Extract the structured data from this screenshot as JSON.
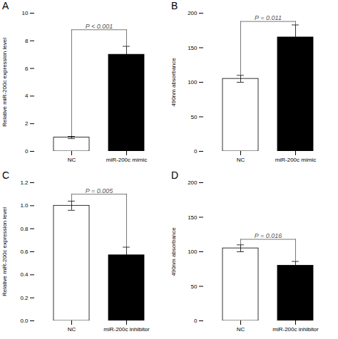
{
  "chart_data": [
    {
      "type": "bar",
      "title": "A",
      "categories": [
        "NC",
        "miR-200c mimic"
      ],
      "values": [
        1.0,
        7.0
      ],
      "errors": [
        0.08,
        0.6
      ],
      "colors": [
        "white",
        "black"
      ],
      "ylabel": "Relative miR-200c expression level",
      "ylim": [
        0,
        10
      ],
      "yticks": [
        0,
        2,
        4,
        6,
        8,
        10
      ],
      "annotation": {
        "text": "P < 0.001",
        "color": "#555555"
      },
      "bracket": {
        "y": 8.8,
        "left": 1.08,
        "right": 7.6,
        "color": "#555555"
      }
    },
    {
      "type": "bar",
      "title": "B",
      "categories": [
        "NC",
        "miR-200c mimic"
      ],
      "values": [
        105,
        165
      ],
      "errors": [
        5,
        18
      ],
      "colors": [
        "white",
        "black"
      ],
      "ylabel": "490nm absorbance",
      "ylim": [
        0,
        200
      ],
      "yticks": [
        0,
        50,
        100,
        150,
        200
      ],
      "annotation": {
        "text": "P = 0.011",
        "color": "#555555"
      },
      "bracket": {
        "y": 188,
        "left": 110,
        "right": 183,
        "color": "#555555"
      }
    },
    {
      "type": "bar",
      "title": "C",
      "categories": [
        "NC",
        "miR-200c inhibitor"
      ],
      "values": [
        1.0,
        0.57
      ],
      "errors": [
        0.04,
        0.07
      ],
      "colors": [
        "white",
        "black"
      ],
      "ylabel": "Relative miR-200c expression level",
      "ylim": [
        0,
        1.2
      ],
      "yticks": [
        {
          "value": 0,
          "label": "0.0"
        },
        0.2,
        0.4,
        0.6,
        0.8,
        {
          "value": 1,
          "label": "1.0"
        },
        1.2
      ],
      "annotation": {
        "text": "P = 0.005",
        "color": "#555555"
      },
      "bracket": {
        "y": 1.1,
        "left": 1.04,
        "right": 0.64,
        "color": "#555555"
      }
    },
    {
      "type": "bar",
      "title": "D",
      "categories": [
        "NC",
        "miR-200c inhibitor"
      ],
      "values": [
        105,
        80
      ],
      "errors": [
        5,
        6
      ],
      "colors": [
        "white",
        "black"
      ],
      "ylabel": "490nm absorbance",
      "ylim": [
        0,
        200
      ],
      "yticks": [
        0,
        50,
        100,
        150,
        200
      ],
      "annotation": {
        "text": "P = 0.016",
        "color": "#555555"
      },
      "bracket": {
        "y": 118,
        "left": 110,
        "right": 86,
        "color": "#555555"
      }
    }
  ]
}
